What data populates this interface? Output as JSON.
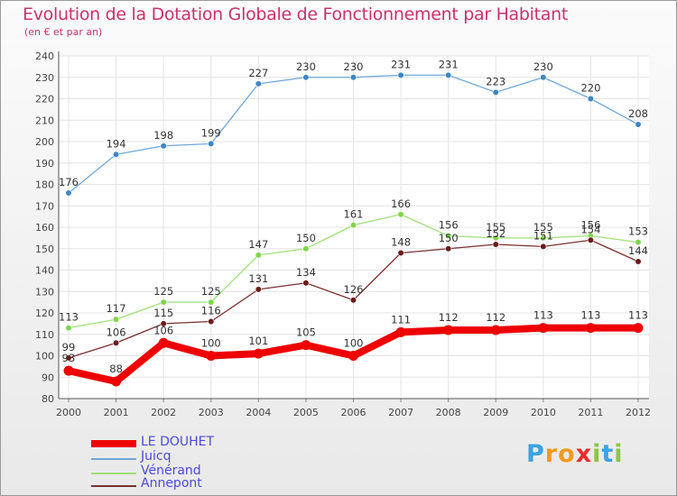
{
  "title": "Evolution de la Dotation Globale de Fonctionnement par Habitant",
  "subtitle": "(en € et par an)",
  "logo": {
    "text": "Proxiti",
    "letters": [
      "P",
      "r",
      "o",
      "x",
      "i",
      "t",
      "i"
    ],
    "colors": [
      "#3aa3e0",
      "#f29a1e",
      "#f29a1e",
      "#e52e2e",
      "#8cc63f",
      "#3aa3e0",
      "#8cc63f"
    ]
  },
  "chart_data": {
    "type": "line",
    "categories": [
      "2000",
      "2001",
      "2002",
      "2003",
      "2004",
      "2005",
      "2006",
      "2007",
      "2008",
      "2009",
      "2010",
      "2011",
      "2012"
    ],
    "ylim": [
      80,
      240
    ],
    "yticks": [
      80,
      90,
      100,
      110,
      120,
      130,
      140,
      150,
      160,
      170,
      180,
      190,
      200,
      210,
      220,
      230,
      240
    ],
    "series": [
      {
        "name": "LE DOUHET",
        "color": "#ee0000",
        "marker": "#ee0000",
        "width": 8,
        "values": [
          93,
          88,
          106,
          100,
          101,
          105,
          100,
          111,
          112,
          112,
          113,
          113,
          113
        ],
        "labels": [
          "93",
          "88",
          "106",
          "100",
          "101",
          "105",
          "100",
          "111",
          "112",
          "112",
          "113",
          "113",
          "113"
        ]
      },
      {
        "name": "Juicq",
        "color": "#6fa7d8",
        "marker": "#3d85c6",
        "width": 1.3,
        "values": [
          176,
          194,
          198,
          199,
          227,
          230,
          230,
          231,
          231,
          223,
          230,
          220,
          208
        ],
        "labels": [
          "176",
          "194",
          "198",
          "199",
          "227",
          "230",
          "230",
          "231",
          "231",
          "223",
          "230",
          "220",
          "208"
        ]
      },
      {
        "name": "Vénérand",
        "color": "#9fe07a",
        "marker": "#7ed84a",
        "width": 1.3,
        "values": [
          113,
          117,
          125,
          125,
          147,
          150,
          161,
          166,
          156,
          155,
          155,
          156,
          153
        ],
        "labels": [
          "113",
          "117",
          "125",
          "125",
          "147",
          "150",
          "161",
          "166",
          "156",
          "155",
          "155",
          "156",
          "153"
        ]
      },
      {
        "name": "Annepont",
        "color": "#7a3030",
        "marker": "#6b1a1a",
        "width": 1.3,
        "values": [
          99,
          106,
          115,
          116,
          131,
          134,
          126,
          148,
          150,
          152,
          151,
          154,
          144
        ],
        "labels": [
          "99",
          "106",
          "115",
          "116",
          "131",
          "134",
          "126",
          "148",
          "150",
          "152",
          "151",
          "154",
          "144"
        ]
      }
    ]
  }
}
